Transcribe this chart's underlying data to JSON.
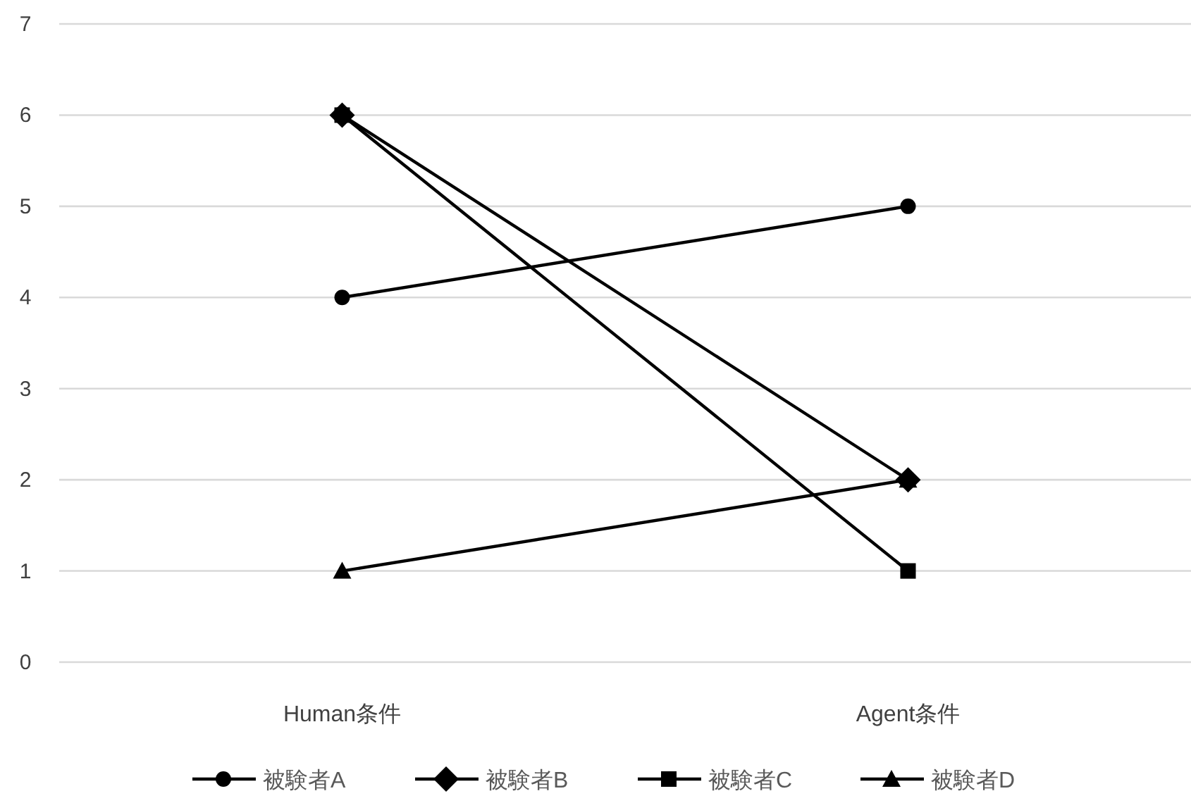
{
  "chart_data": {
    "type": "line",
    "categories": [
      "Human条件",
      "Agent条件"
    ],
    "series": [
      {
        "name": "被験者A",
        "color": "#000000",
        "marker": "circle",
        "values": [
          4,
          5
        ]
      },
      {
        "name": "被験者B",
        "color": "#000000",
        "marker": "diamond",
        "values": [
          6,
          2
        ]
      },
      {
        "name": "被験者C",
        "color": "#000000",
        "marker": "square",
        "values": [
          6,
          1
        ]
      },
      {
        "name": "被験者D",
        "color": "#000000",
        "marker": "triangle",
        "values": [
          1,
          2
        ]
      }
    ],
    "ylim": [
      0,
      7
    ],
    "yticks": [
      0,
      1,
      2,
      3,
      4,
      5,
      6,
      7
    ],
    "grid": "y",
    "legend": "bottom",
    "line_style": "solid"
  }
}
